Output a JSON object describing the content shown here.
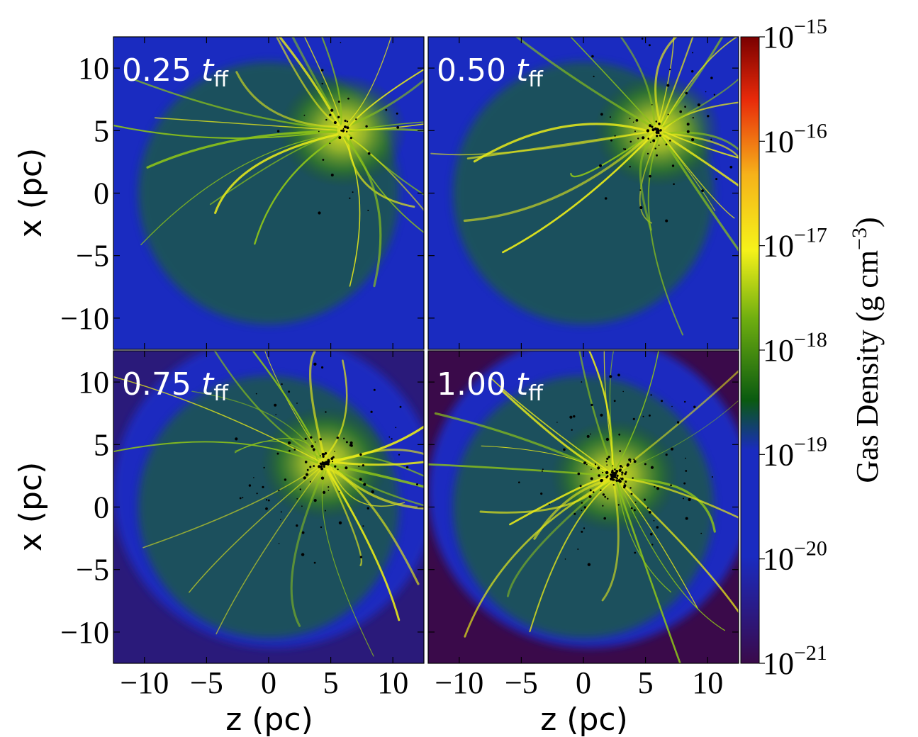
{
  "chart_data": {
    "type": "heatmap",
    "title": "",
    "panels": [
      {
        "time_value": "0.25",
        "time_unit": "t",
        "time_sub": "ff",
        "blob": [
          6,
          5
        ],
        "row": 0,
        "col": 0
      },
      {
        "time_value": "0.50",
        "time_unit": "t",
        "time_sub": "ff",
        "blob": [
          6,
          5
        ],
        "row": 0,
        "col": 1
      },
      {
        "time_value": "0.75",
        "time_unit": "t",
        "time_sub": "ff",
        "blob": [
          4.5,
          3.5
        ],
        "row": 1,
        "col": 0
      },
      {
        "time_value": "1.00",
        "time_unit": "t",
        "time_sub": "ff",
        "blob": [
          2.5,
          2.5
        ],
        "row": 1,
        "col": 1
      }
    ],
    "xlabel": "z  (pc)",
    "ylabel": "x  (pc)",
    "xlim": [
      -12.5,
      12.5
    ],
    "ylim": [
      -12.5,
      12.5
    ],
    "xticks": [
      -10,
      -5,
      0,
      5,
      10
    ],
    "xtick_labels": [
      "−10",
      "−5",
      "0",
      "5",
      "10"
    ],
    "yticks": [
      -10,
      -5,
      0,
      5,
      10
    ],
    "ytick_labels": [
      "−10",
      "−5",
      "0",
      "5",
      "10"
    ],
    "colorbar": {
      "label": "Gas Density (g cm",
      "label_exp": "−3",
      "label_close": ")",
      "scale": "log",
      "range": [
        1e-21,
        1e-15
      ],
      "tick_base": "10",
      "tick_exps": [
        "−15",
        "−16",
        "−17",
        "−18",
        "−19",
        "−20",
        "−21"
      ],
      "colors": [
        "#3a0a4a",
        "#1a2bc0",
        "#0a5a10",
        "#6fae10",
        "#f6f21a",
        "#f6a21a",
        "#e82a0a",
        "#7a0000"
      ]
    }
  }
}
